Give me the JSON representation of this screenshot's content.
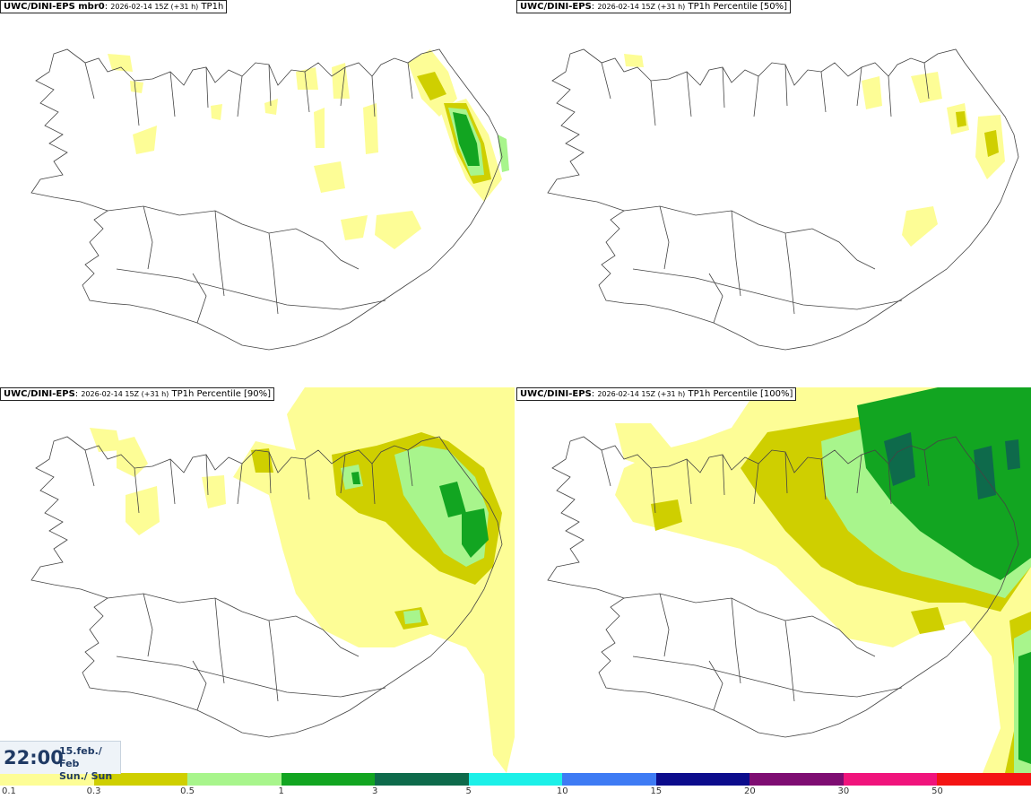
{
  "panels": [
    {
      "source": "UWC/DINI-EPS mbr0",
      "run": "2026-02-14 15Z (+31 h)",
      "field": "TP1h"
    },
    {
      "source": "UWC/DINI-EPS",
      "run": "2026-02-14 15Z (+31 h)",
      "field": "TP1h Percentile [50%]"
    },
    {
      "source": "UWC/DINI-EPS",
      "run": "2026-02-14 15Z (+31 h)",
      "field": "TP1h Percentile [90%]"
    },
    {
      "source": "UWC/DINI-EPS",
      "run": "2026-02-14 15Z (+31 h)",
      "field": "TP1h Percentile [100%]"
    }
  ],
  "valid_time": {
    "time": "22:00",
    "date": "15.feb./ Feb",
    "day": "Sun./ Sun"
  },
  "legend": {
    "levels": [
      "0.1",
      "0.3",
      "0.5",
      "1",
      "3",
      "5",
      "10",
      "15",
      "20",
      "30",
      "50"
    ],
    "colors": [
      "#fdfd96",
      "#cfcf00",
      "#a8f58c",
      "#12a521",
      "#0e6a4b",
      "#1cf0e8",
      "#3e7bf4",
      "#0c0c8c",
      "#7e0d72",
      "#f0147c",
      "#f41414"
    ]
  }
}
